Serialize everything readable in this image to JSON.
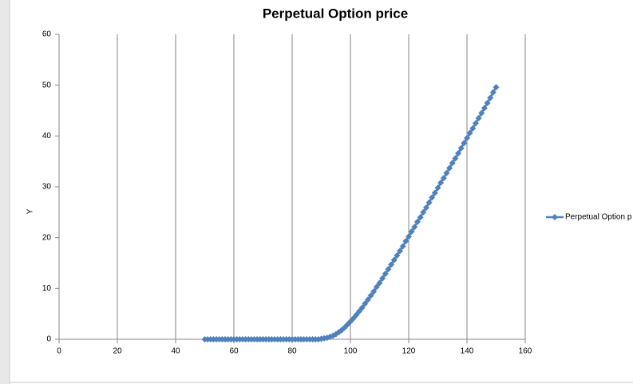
{
  "chart_data": {
    "type": "scatter-line",
    "title": "Perpetual Option price",
    "y_label": "Y",
    "x": [
      50,
      51,
      52,
      53,
      54,
      55,
      56,
      57,
      58,
      59,
      60,
      61,
      62,
      63,
      64,
      65,
      66,
      67,
      68,
      69,
      70,
      71,
      72,
      73,
      74,
      75,
      76,
      77,
      78,
      79,
      80,
      81,
      82,
      83,
      84,
      85,
      86,
      87,
      88,
      89,
      90,
      91,
      92,
      93,
      94,
      95,
      96,
      97,
      98,
      99,
      100,
      101,
      102,
      103,
      104,
      105,
      106,
      107,
      108,
      109,
      110,
      111,
      112,
      113,
      114,
      115,
      116,
      117,
      118,
      119,
      120,
      121,
      122,
      123,
      124,
      125,
      126,
      127,
      128,
      129,
      130,
      131,
      132,
      133,
      134,
      135,
      136,
      137,
      138,
      139,
      140,
      141,
      142,
      143,
      144,
      145,
      146,
      147,
      148,
      149,
      150
    ],
    "series": [
      {
        "name": "Perpetual Option p",
        "color": "#4f81bd",
        "values": [
          0,
          0,
          0,
          0,
          0,
          0,
          0,
          0,
          0,
          0,
          0,
          0,
          0,
          0,
          0,
          0,
          0,
          0,
          0,
          0,
          0,
          0,
          0,
          0,
          0,
          0,
          0,
          0,
          0,
          0,
          0,
          0,
          0,
          0,
          0,
          0,
          0,
          0,
          0,
          0,
          0.1,
          0.2,
          0.3,
          0.5,
          0.7,
          1.0,
          1.4,
          1.8,
          2.3,
          2.9,
          3.5,
          4.1,
          4.8,
          5.5,
          6.2,
          7.0,
          7.8,
          8.6,
          9.4,
          10.3,
          11.1,
          12.0,
          12.9,
          13.8,
          14.7,
          15.6,
          16.5,
          17.4,
          18.3,
          19.3,
          20.2,
          21.2,
          22.1,
          23.1,
          24.0,
          25.0,
          25.9,
          26.9,
          27.9,
          28.8,
          29.8,
          30.8,
          31.7,
          32.7,
          33.7,
          34.7,
          35.6,
          36.6,
          37.6,
          38.6,
          39.6,
          40.6,
          41.5,
          42.5,
          43.5,
          44.5,
          45.5,
          46.5,
          47.5,
          48.6,
          49.6
        ]
      }
    ],
    "xlim": [
      0,
      160
    ],
    "xticks": [
      0,
      20,
      40,
      60,
      80,
      100,
      120,
      140,
      160
    ],
    "ylim": [
      0,
      60
    ],
    "yticks": [
      0,
      10,
      20,
      30,
      40,
      50,
      60
    ],
    "grid": "x",
    "legend": "right"
  }
}
